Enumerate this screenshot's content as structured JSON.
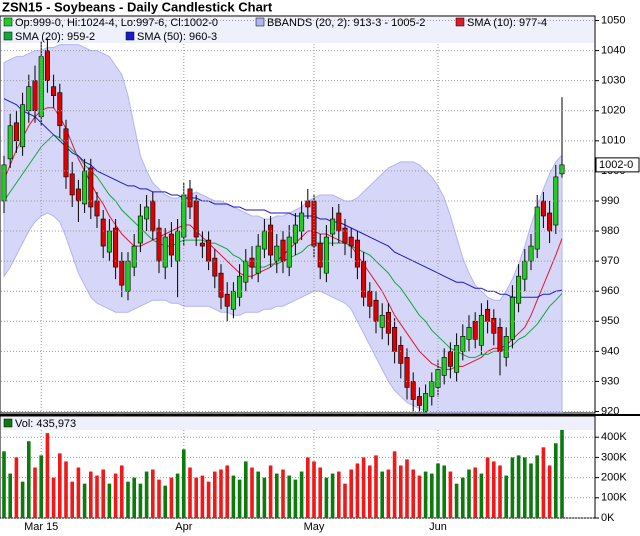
{
  "chart_data": [
    {
      "type": "candlestick",
      "title": "ZSN15 - Soybeans - Daily Candlestick Chart",
      "ohlc_label": "Op:999-0, Hi:1024-4, Lo:997-6, Cl:1002-0",
      "last_label": "1002-0",
      "up_color": "#22cc22",
      "down_color": "#dd0000",
      "ylim": [
        919.5,
        1051.5
      ],
      "yticks": [
        920,
        930,
        940,
        950,
        960,
        970,
        980,
        990,
        1000,
        1010,
        1020,
        1030,
        1040,
        1050
      ],
      "grid": true,
      "open": [
        990,
        1004,
        1016,
        1008,
        1020,
        1030,
        1018,
        1040,
        1028,
        1026,
        1014,
        999,
        994,
        989,
        1001,
        990,
        984,
        973,
        981,
        970,
        960,
        968,
        976,
        984,
        990,
        981,
        968,
        979,
        970,
        978,
        994,
        990,
        976,
        977,
        971,
        966,
        959,
        954,
        958,
        963,
        971,
        966,
        974,
        982,
        970,
        977,
        968,
        976,
        980,
        990,
        990,
        976,
        966,
        979,
        986,
        981,
        978,
        977,
        970,
        960,
        957,
        948,
        953,
        948,
        942,
        938,
        930,
        925,
        920,
        925,
        928,
        932,
        940,
        933,
        940,
        944,
        950,
        942,
        954,
        951,
        948,
        938,
        944,
        956,
        964,
        970,
        974,
        990,
        986,
        982,
        999
      ],
      "high": [
        1005,
        1019,
        1020,
        1026,
        1032,
        1035,
        1043,
        1044,
        1032,
        1029,
        1017,
        1003,
        997,
        1004,
        1004,
        993,
        987,
        984,
        984,
        973,
        973,
        979,
        989,
        992,
        993,
        984,
        981,
        983,
        984,
        996,
        997,
        992,
        980,
        980,
        974,
        969,
        963,
        963,
        969,
        974,
        975,
        979,
        984,
        985,
        979,
        980,
        982,
        986,
        990,
        994,
        992,
        979,
        982,
        988,
        989,
        984,
        981,
        980,
        973,
        963,
        960,
        956,
        956,
        951,
        945,
        941,
        933,
        928,
        929,
        933,
        937,
        941,
        943,
        946,
        949,
        952,
        953,
        956,
        957,
        954,
        951,
        948,
        962,
        969,
        974,
        979,
        992,
        993,
        990,
        1002,
        1024.5
      ],
      "low": [
        986,
        1001,
        1006,
        1005,
        1016,
        1016,
        1015,
        1026,
        1021,
        1011,
        994,
        988,
        983,
        986,
        984,
        981,
        971,
        970,
        964,
        958,
        957,
        965,
        973,
        980,
        977,
        966,
        964,
        968,
        958,
        975,
        984,
        975,
        971,
        967,
        961,
        954,
        950,
        951,
        955,
        960,
        964,
        963,
        971,
        968,
        966,
        966,
        965,
        972,
        977,
        984,
        971,
        964,
        963,
        975,
        976,
        972,
        971,
        964,
        955,
        951,
        946,
        944,
        942,
        936,
        931,
        924,
        920,
        920,
        920,
        922,
        925,
        929,
        931,
        930,
        937,
        940,
        941,
        939,
        946,
        942,
        932,
        935,
        941,
        953,
        960,
        967,
        971,
        981,
        976,
        979,
        997.75
      ],
      "close": [
        1002,
        1015,
        1010,
        1022,
        1028,
        1020,
        1038,
        1030,
        1025,
        1015,
        998,
        992,
        990,
        1000,
        988,
        985,
        975,
        980,
        968,
        962,
        970,
        975,
        985,
        988,
        980,
        970,
        978,
        972,
        980,
        992,
        988,
        978,
        975,
        970,
        965,
        958,
        955,
        960,
        965,
        970,
        968,
        975,
        980,
        972,
        975,
        970,
        978,
        982,
        986,
        988,
        975,
        968,
        978,
        984,
        980,
        976,
        975,
        968,
        958,
        955,
        950,
        952,
        946,
        940,
        936,
        928,
        924,
        922,
        926,
        930,
        934,
        938,
        935,
        942,
        945,
        948,
        944,
        952,
        950,
        946,
        940,
        945,
        958,
        965,
        970,
        975,
        988,
        985,
        980,
        998,
        1002
      ],
      "series": [
        {
          "name": "BBANDS (20, 2): 913-3 - 1005-2",
          "color": "#b4b4f2",
          "upper": [
            1036,
            1037,
            1038,
            1038,
            1039,
            1040,
            1040,
            1041,
            1041,
            1042,
            1042,
            1042,
            1042,
            1041,
            1040,
            1040,
            1039,
            1038,
            1035,
            1032,
            1025,
            1015,
            1005,
            1000,
            996,
            994,
            992,
            991,
            991,
            992,
            992,
            993,
            992,
            991,
            990,
            990,
            989,
            988,
            987,
            986,
            985,
            985,
            984,
            984,
            985,
            985,
            986,
            987,
            988,
            990,
            991,
            992,
            992,
            992,
            991,
            990,
            990,
            991,
            993,
            995,
            997,
            999,
            1001,
            1002,
            1003,
            1003,
            1003,
            1002,
            1000,
            998,
            995,
            991,
            985,
            978,
            971,
            966,
            962,
            960,
            958,
            957,
            957,
            960,
            964,
            969,
            975,
            982,
            988,
            994,
            999,
            1003,
            1005.25
          ],
          "lower": [
            965,
            968,
            972,
            976,
            980,
            983,
            985,
            986,
            985,
            983,
            978,
            972,
            966,
            962,
            958,
            956,
            955,
            954,
            953,
            953,
            953,
            954,
            955,
            956,
            957,
            957,
            957,
            956,
            956,
            955,
            955,
            955,
            955,
            955,
            954,
            953,
            953,
            952,
            952,
            953,
            953,
            953,
            954,
            954,
            955,
            955,
            956,
            957,
            958,
            959,
            960,
            960,
            959,
            958,
            957,
            956,
            954,
            950,
            946,
            942,
            938,
            934,
            930,
            927,
            925,
            923,
            922,
            921,
            920,
            919,
            919,
            918,
            918,
            918,
            918,
            918,
            918,
            918,
            919,
            919,
            919,
            919,
            918,
            918,
            917,
            916,
            915,
            915,
            914,
            914,
            913.375
          ]
        },
        {
          "name": "SMA (10): 977-4",
          "color": "#e0182c",
          "values": [
            997,
            1002,
            1007,
            1011,
            1015,
            1018,
            1020,
            1021,
            1021,
            1018,
            1014,
            1009,
            1004,
            1000,
            996,
            992,
            989,
            985,
            982,
            979,
            977,
            975,
            975,
            976,
            977,
            978,
            979,
            980,
            981,
            982,
            982,
            980,
            978,
            976,
            974,
            972,
            970,
            968,
            966,
            965,
            965,
            966,
            967,
            968,
            970,
            972,
            974,
            976,
            978,
            980,
            980,
            979,
            979,
            978,
            977,
            976,
            975,
            972,
            969,
            966,
            963,
            960,
            956,
            952,
            949,
            946,
            943,
            940,
            938,
            936,
            935,
            934,
            934,
            935,
            935,
            936,
            937,
            938,
            940,
            941,
            941,
            942,
            944,
            946,
            948,
            952,
            957,
            962,
            967,
            972,
            977.5
          ]
        },
        {
          "name": "SMA (20): 959-2",
          "color": "#12a83a",
          "values": [
            990,
            993,
            996,
            999,
            1002,
            1005,
            1008,
            1010,
            1012,
            1011,
            1009,
            1007,
            1005,
            1002,
            1000,
            998,
            995,
            992,
            990,
            987,
            985,
            983,
            981,
            979,
            977,
            976,
            975,
            975,
            976,
            977,
            977,
            977,
            977,
            976,
            976,
            975,
            974,
            972,
            971,
            969,
            968,
            968,
            968,
            969,
            969,
            970,
            971,
            972,
            973,
            975,
            976,
            976,
            976,
            976,
            976,
            976,
            975,
            974,
            973,
            972,
            970,
            968,
            966,
            963,
            961,
            958,
            955,
            952,
            950,
            947,
            945,
            943,
            941,
            940,
            939,
            938,
            938,
            939,
            939,
            940,
            940,
            941,
            942,
            944,
            945,
            947,
            949,
            952,
            955,
            957,
            959.25
          ]
        },
        {
          "name": "SMA (50): 960-3",
          "color": "#1a1ad0",
          "values": [
            1024,
            1023,
            1022,
            1020,
            1019,
            1018,
            1016,
            1014,
            1012,
            1010,
            1008,
            1006,
            1005,
            1003,
            1002,
            1000,
            999,
            998,
            997,
            996,
            995,
            995,
            994,
            994,
            993,
            993,
            993,
            992,
            992,
            991,
            991,
            991,
            990,
            990,
            989,
            989,
            989,
            988,
            988,
            987,
            987,
            987,
            987,
            986,
            986,
            986,
            986,
            985,
            985,
            985,
            985,
            984,
            984,
            983,
            983,
            982,
            981,
            980,
            979,
            978,
            977,
            976,
            975,
            973,
            972,
            971,
            970,
            969,
            968,
            967,
            966,
            965,
            964,
            963,
            963,
            962,
            961,
            961,
            960,
            960,
            959,
            959,
            958,
            958,
            958,
            958,
            958,
            959,
            959,
            960,
            960.375
          ]
        }
      ]
    },
    {
      "type": "bar",
      "up_color": "#0c7a0c",
      "down_color": "#f01818",
      "categories": [
        null,
        null,
        null,
        null,
        null,
        null,
        "Mar 15",
        null,
        null,
        null,
        null,
        null,
        null,
        null,
        null,
        null,
        null,
        null,
        null,
        null,
        null,
        null,
        null,
        null,
        null,
        null,
        null,
        null,
        null,
        "Apr",
        null,
        null,
        null,
        null,
        null,
        null,
        null,
        null,
        null,
        null,
        null,
        null,
        null,
        null,
        null,
        null,
        null,
        null,
        null,
        null,
        "May",
        null,
        null,
        null,
        null,
        null,
        null,
        null,
        null,
        null,
        null,
        null,
        null,
        null,
        null,
        null,
        null,
        null,
        null,
        null,
        "Jun",
        null,
        null,
        null,
        null,
        null,
        null,
        null,
        null,
        null,
        null,
        null,
        null,
        null,
        null,
        null,
        null,
        null,
        null,
        null,
        null
      ],
      "ylim": [
        0,
        505000
      ],
      "yticks": [
        {
          "value": 0,
          "label": "0K"
        },
        {
          "value": 100000,
          "label": "100K"
        },
        {
          "value": 200000,
          "label": "200K"
        },
        {
          "value": 300000,
          "label": "300K"
        },
        {
          "value": 400000,
          "label": "400K"
        }
      ],
      "series": [
        {
          "name": "Vol: 435,973",
          "color": "#0c7a0c",
          "values": [
            330000,
            220000,
            300000,
            180000,
            380000,
            250000,
            310000,
            420000,
            200000,
            320000,
            280000,
            180000,
            250000,
            170000,
            230000,
            210000,
            240000,
            170000,
            220000,
            260000,
            180000,
            200000,
            170000,
            230000,
            240000,
            190000,
            160000,
            200000,
            220000,
            340000,
            250000,
            200000,
            210000,
            180000,
            230000,
            240000,
            260000,
            210000,
            190000,
            280000,
            250000,
            230000,
            200000,
            260000,
            220000,
            240000,
            210000,
            190000,
            230000,
            300000,
            280000,
            250000,
            200000,
            220000,
            230000,
            170000,
            240000,
            270000,
            300000,
            260000,
            310000,
            230000,
            240000,
            330000,
            260000,
            290000,
            240000,
            210000,
            230000,
            220000,
            270000,
            260000,
            230000,
            170000,
            200000,
            240000,
            250000,
            220000,
            300000,
            280000,
            260000,
            210000,
            300000,
            310000,
            300000,
            270000,
            310000,
            350000,
            260000,
            370000,
            435973
          ]
        }
      ]
    }
  ]
}
